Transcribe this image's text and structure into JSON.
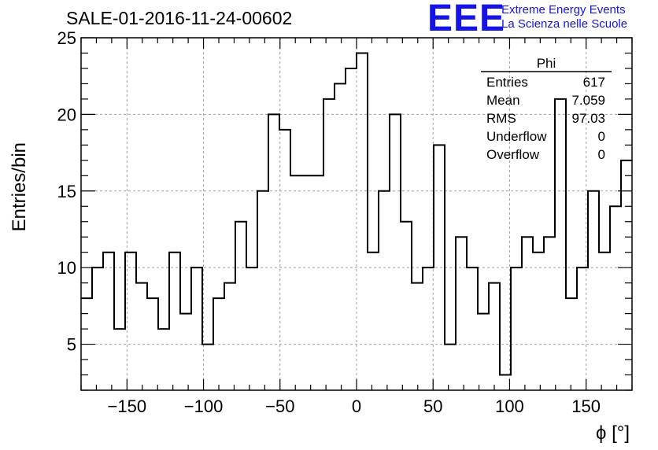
{
  "title": "SALE-01-2016-11-24-00602",
  "logo": {
    "text": "EEE",
    "line1": "Extreme Energy Events",
    "line2": "La Scienza nelle Scuole",
    "color": "#1414e6"
  },
  "stats_box": {
    "name": "Phi",
    "rows": [
      {
        "label": "Entries",
        "value": "617"
      },
      {
        "label": "Mean",
        "value": "7.059"
      },
      {
        "label": "RMS",
        "value": "97.03"
      },
      {
        "label": "Underflow",
        "value": "0"
      },
      {
        "label": "Overflow",
        "value": "0"
      }
    ]
  },
  "chart_data": {
    "type": "bar",
    "style": "step-histogram",
    "xlabel": "ϕ [°]",
    "ylabel": "Entries/bin",
    "xlim": [
      -180,
      180
    ],
    "ylim": [
      2,
      25
    ],
    "x_ticks": [
      -150,
      -100,
      -50,
      0,
      50,
      100,
      150
    ],
    "y_ticks": [
      5,
      10,
      15,
      20,
      25
    ],
    "grid": true,
    "bin_width": 7.2,
    "bin_low_edges": [
      -180,
      -172.8,
      -165.6,
      -158.4,
      -151.2,
      -144,
      -136.8,
      -129.6,
      -122.4,
      -115.2,
      -108,
      -100.8,
      -93.6,
      -86.4,
      -79.2,
      -72,
      -64.8,
      -57.6,
      -50.4,
      -43.2,
      -36,
      -28.8,
      -21.6,
      -14.4,
      -7.2,
      0,
      7.2,
      14.4,
      21.6,
      28.8,
      36,
      43.2,
      50.4,
      57.6,
      64.8,
      72,
      79.2,
      86.4,
      93.6,
      100.8,
      108,
      115.2,
      122.4,
      129.6,
      136.8,
      144,
      151.2,
      158.4,
      165.6,
      172.8
    ],
    "values": [
      8,
      10,
      11,
      6,
      11,
      9,
      8,
      6,
      11,
      7,
      10,
      5,
      8,
      9,
      13,
      10,
      15,
      20,
      19,
      16,
      16,
      16,
      21,
      22,
      23,
      24,
      11,
      15,
      20,
      13,
      9,
      10,
      18,
      5,
      12,
      10,
      7,
      9,
      3,
      10,
      12,
      11,
      12,
      21,
      8,
      10,
      15,
      11,
      14,
      17
    ],
    "colors": {
      "line": "#000000",
      "grid": "#a0a0a0"
    }
  }
}
